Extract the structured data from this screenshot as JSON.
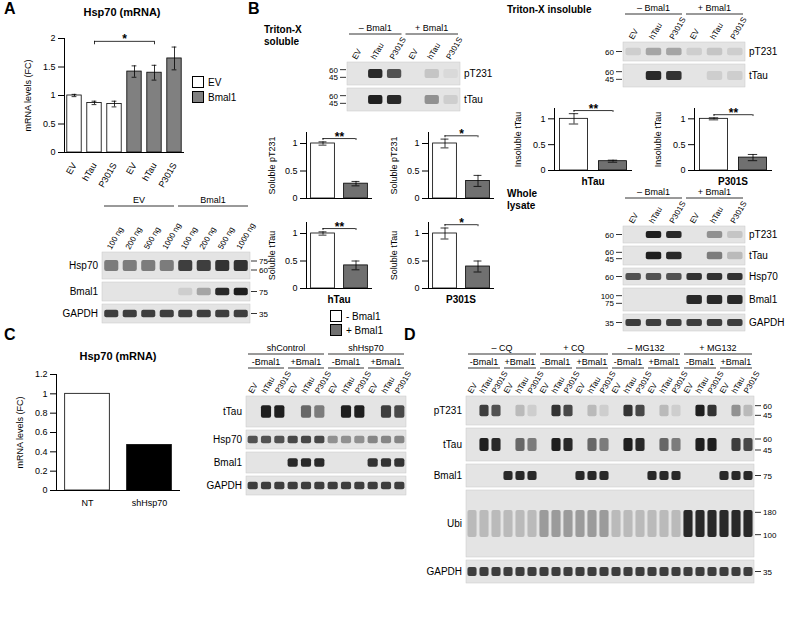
{
  "panel_labels": [
    "A",
    "B",
    "C",
    "D"
  ],
  "chart_data": [
    {
      "type": "bar",
      "title": "Hsp70 (mRNA)",
      "ylabel": "mRNA levels (FC)",
      "categories": [
        "EV",
        "hTau",
        "P301S",
        "EV",
        "hTau",
        "P301S"
      ],
      "series": [
        {
          "name": "EV",
          "color": "#ffffff",
          "values": [
            1.0,
            0.87,
            0.85,
            null,
            null,
            null
          ],
          "errors": [
            0.02,
            0.03,
            0.05,
            null,
            null,
            null
          ]
        },
        {
          "name": "Bmal1",
          "color": "#808080",
          "values": [
            null,
            null,
            null,
            1.42,
            1.4,
            1.65
          ],
          "errors": [
            null,
            null,
            null,
            0.1,
            0.13,
            0.2
          ]
        }
      ],
      "ylim": [
        0,
        2
      ],
      "yticks": [
        0,
        0.5,
        1,
        1.5,
        2
      ],
      "legend": "right",
      "annotations": [
        {
          "text": "*",
          "between": [
            1,
            4
          ]
        }
      ]
    },
    {
      "type": "bar",
      "ylabel": "Soluble pT231",
      "values": [
        1.0,
        0.27
      ],
      "errors": [
        0.03,
        0.04
      ],
      "colors": [
        "#ffffff",
        "#707070"
      ],
      "ylim": [
        0,
        1.2
      ],
      "yticks": [
        0,
        0.5,
        1
      ],
      "tick_labels": "y",
      "annotations": [
        {
          "text": "**",
          "between": [
            0,
            1
          ]
        }
      ]
    },
    {
      "type": "bar",
      "ylabel": "Soluble pT231",
      "values": [
        1.0,
        0.32
      ],
      "errors": [
        0.08,
        0.1
      ],
      "colors": [
        "#ffffff",
        "#707070"
      ],
      "ylim": [
        0,
        1.2
      ],
      "yticks": [
        0,
        0.5,
        1
      ],
      "tick_labels": "y",
      "annotations": [
        {
          "text": "*",
          "between": [
            0,
            1
          ]
        }
      ]
    },
    {
      "type": "bar",
      "ylabel": "Soluble tTau",
      "xlabel": "hTau",
      "values": [
        1.0,
        0.42
      ],
      "errors": [
        0.03,
        0.08
      ],
      "colors": [
        "#ffffff",
        "#707070"
      ],
      "ylim": [
        0,
        1.2
      ],
      "yticks": [
        0,
        0.5,
        1
      ],
      "tick_labels": "y",
      "annotations": [
        {
          "text": "**",
          "between": [
            0,
            1
          ]
        }
      ]
    },
    {
      "type": "bar",
      "ylabel": "Soluble tTau",
      "xlabel": "P301S",
      "values": [
        1.0,
        0.4
      ],
      "errors": [
        0.1,
        0.1
      ],
      "colors": [
        "#ffffff",
        "#707070"
      ],
      "ylim": [
        0,
        1.2
      ],
      "yticks": [
        0,
        0.5,
        1
      ],
      "tick_labels": "y",
      "annotations": [
        {
          "text": "*",
          "between": [
            0,
            1
          ]
        }
      ]
    },
    {
      "type": "bar",
      "ylabel": "Insoluble tTau",
      "xlabel": "hTau",
      "values": [
        1.0,
        0.18
      ],
      "errors": [
        0.1,
        0.02
      ],
      "colors": [
        "#ffffff",
        "#707070"
      ],
      "ylim": [
        0,
        1.2
      ],
      "yticks": [
        0,
        0.5,
        1
      ],
      "tick_labels": "y",
      "annotations": [
        {
          "text": "**",
          "between": [
            0,
            1
          ]
        }
      ]
    },
    {
      "type": "bar",
      "ylabel": "Insoluble tTau",
      "xlabel": "P301S",
      "values": [
        1.0,
        0.25
      ],
      "errors": [
        0.02,
        0.06
      ],
      "colors": [
        "#ffffff",
        "#707070"
      ],
      "ylim": [
        0,
        1.2
      ],
      "yticks": [
        0,
        0.5,
        1
      ],
      "tick_labels": "y",
      "annotations": [
        {
          "text": "**",
          "between": [
            0,
            1
          ]
        }
      ]
    },
    {
      "type": "bar",
      "title": "Hsp70 (mRNA)",
      "ylabel": "mRNA levels (FC)",
      "categories": [
        "NT",
        "shHsp70"
      ],
      "values": [
        1.0,
        0.47
      ],
      "colors": [
        "#ffffff",
        "#000000"
      ],
      "ylim": [
        0,
        1.2
      ],
      "yticks": [
        0,
        0.2,
        0.4,
        0.6,
        0.8,
        1,
        1.2
      ]
    }
  ],
  "legends": [
    {
      "entries": [
        {
          "name": "- Bmal1",
          "color": "#ffffff"
        },
        {
          "name": "+ Bmal1",
          "color": "#707070"
        }
      ]
    }
  ],
  "blots": [
    {
      "header_rows": [
        [
          {
            "text": "EV",
            "span": 4
          },
          {
            "text": "Bmal1",
            "span": 4
          }
        ]
      ],
      "lanes": [
        "100 ng",
        "200 ng",
        "500 ng",
        "1000 ng",
        "100 ng",
        "200 ng",
        "500 ng",
        "1000 ng"
      ],
      "rows": [
        {
          "name": "Hsp70",
          "markers": [
            75,
            60
          ],
          "intensity": [
            0.5,
            0.5,
            0.5,
            0.5,
            0.8,
            0.8,
            0.85,
            0.85
          ]
        },
        {
          "name": "Bmal1",
          "markers": [
            75
          ],
          "intensity": [
            0,
            0,
            0,
            0,
            0.1,
            0.3,
            0.9,
            0.95
          ]
        },
        {
          "name": "GAPDH",
          "markers": [
            35
          ],
          "intensity": [
            0.8,
            0.8,
            0.8,
            0.8,
            0.8,
            0.8,
            0.8,
            0.8
          ]
        }
      ]
    },
    {
      "title": "Triton-X soluble",
      "header_rows": [
        [
          {
            "text": "– Bmal1",
            "span": 3
          },
          {
            "text": "+ Bmal1",
            "span": 3
          }
        ]
      ],
      "lanes": [
        "EV",
        "hTau",
        "P301S",
        "EV",
        "hTau",
        "P301S"
      ],
      "rows": [
        {
          "name": "pT231",
          "markers": [
            60,
            45
          ],
          "intensity": [
            0,
            0.9,
            0.7,
            0,
            0.15,
            0.05
          ]
        },
        {
          "name": "tTau",
          "markers": [
            60,
            45
          ],
          "intensity": [
            0,
            0.95,
            0.9,
            0,
            0.4,
            0.1
          ]
        }
      ]
    },
    {
      "title": "Triton-X insoluble",
      "header_rows": [
        [
          {
            "text": "– Bmal1",
            "span": 3
          },
          {
            "text": "+ Bmal1",
            "span": 3
          }
        ]
      ],
      "lanes": [
        "EV",
        "hTau",
        "P301S",
        "EV",
        "hTau",
        "P301S"
      ],
      "rows": [
        {
          "name": "pT231",
          "markers": [
            60
          ],
          "intensity": [
            0.1,
            0.3,
            0.3,
            0.1,
            0.15,
            0.1
          ]
        },
        {
          "name": "tTau",
          "markers": [
            60,
            45
          ],
          "intensity": [
            0,
            0.9,
            0.85,
            0,
            0.1,
            0.1
          ]
        }
      ]
    },
    {
      "title": "Whole lysate",
      "header_rows": [
        [
          {
            "text": "– Bmal1",
            "span": 3
          },
          {
            "text": "+ Bmal1",
            "span": 3
          }
        ]
      ],
      "lanes": [
        "EV",
        "hTau",
        "P301S",
        "EV",
        "hTau",
        "P301S"
      ],
      "rows": [
        {
          "name": "pT231",
          "markers": [
            60
          ],
          "intensity": [
            0,
            0.95,
            0.9,
            0,
            0.4,
            0.15
          ]
        },
        {
          "name": "tTau",
          "markers": [
            60,
            45
          ],
          "intensity": [
            0,
            0.95,
            0.9,
            0,
            0.5,
            0.2
          ]
        },
        {
          "name": "Hsp70",
          "markers": [
            60
          ],
          "intensity": [
            0.7,
            0.7,
            0.7,
            0.85,
            0.85,
            0.85
          ]
        },
        {
          "name": "Bmal1",
          "markers": [
            100,
            75
          ],
          "intensity": [
            0,
            0,
            0,
            0.9,
            0.9,
            0.9
          ]
        },
        {
          "name": "GAPDH",
          "markers": [
            35
          ],
          "intensity": [
            0.8,
            0.8,
            0.8,
            0.8,
            0.8,
            0.8
          ]
        }
      ]
    },
    {
      "header_rows": [
        [
          {
            "text": "shControl",
            "span": 6
          },
          {
            "text": "shHsp70",
            "span": 6
          }
        ],
        [
          {
            "text": "-Bmal1",
            "span": 3
          },
          {
            "text": "+Bmal1",
            "span": 3
          },
          {
            "text": "-Bmal1",
            "span": 3
          },
          {
            "text": "+Bmal1",
            "span": 3
          }
        ]
      ],
      "lanes": [
        "EV",
        "hTau",
        "P301S",
        "EV",
        "hTau",
        "P301S",
        "EV",
        "hTau",
        "P301S",
        "EV",
        "hTau",
        "P301S"
      ],
      "rows": [
        {
          "name": "tTau",
          "intensity": [
            0,
            0.95,
            0.95,
            0,
            0.6,
            0.5,
            0,
            0.95,
            0.95,
            0,
            0.8,
            0.75
          ]
        },
        {
          "name": "Hsp70",
          "intensity": [
            0.7,
            0.7,
            0.7,
            0.75,
            0.75,
            0.75,
            0.4,
            0.4,
            0.4,
            0.45,
            0.45,
            0.45
          ]
        },
        {
          "name": "Bmal1",
          "intensity": [
            0,
            0,
            0,
            0.9,
            0.9,
            0.9,
            0,
            0,
            0,
            0.85,
            0.85,
            0.85
          ]
        },
        {
          "name": "GAPDH",
          "intensity": [
            0.8,
            0.8,
            0.8,
            0.8,
            0.8,
            0.8,
            0.8,
            0.8,
            0.8,
            0.8,
            0.8,
            0.8
          ]
        }
      ]
    },
    {
      "header_rows": [
        [
          {
            "text": "– CQ",
            "span": 6
          },
          {
            "text": "+ CQ",
            "span": 6
          },
          {
            "text": "– MG132",
            "span": 6
          },
          {
            "text": "+ MG132",
            "span": 6
          }
        ],
        [
          {
            "text": "-Bmal1",
            "span": 3
          },
          {
            "text": "+Bmal1",
            "span": 3
          },
          {
            "text": "-Bmal1",
            "span": 3
          },
          {
            "text": "+Bmal1",
            "span": 3
          },
          {
            "text": "-Bmal1",
            "span": 3
          },
          {
            "text": "+Bmal1",
            "span": 3
          },
          {
            "text": "-Bmal1",
            "span": 3
          },
          {
            "text": "+Bmal1",
            "span": 3
          }
        ]
      ],
      "lanes": [
        "EV",
        "hTau",
        "P301S",
        "EV",
        "hTau",
        "P301S",
        "EV",
        "hTau",
        "P301S",
        "EV",
        "hTau",
        "P301S",
        "EV",
        "hTau",
        "P301S",
        "EV",
        "hTau",
        "P301S",
        "EV",
        "hTau",
        "P301S",
        "EV",
        "hTau",
        "P301S"
      ],
      "rows": [
        {
          "name": "pT231",
          "markers": [
            60,
            45
          ],
          "intensity": [
            0,
            0.8,
            0.7,
            0,
            0.2,
            0.1,
            0,
            0.85,
            0.75,
            0,
            0.2,
            0.1,
            0,
            0.85,
            0.75,
            0,
            0.2,
            0.1,
            0,
            0.95,
            0.85,
            0,
            0.4,
            0.2
          ]
        },
        {
          "name": "tTau",
          "markers": [
            60,
            45
          ],
          "intensity": [
            0,
            0.95,
            0.9,
            0,
            0.6,
            0.5,
            0,
            0.95,
            0.9,
            0,
            0.6,
            0.5,
            0,
            0.95,
            0.9,
            0,
            0.6,
            0.5,
            0,
            0.95,
            0.95,
            0,
            0.8,
            0.75
          ]
        },
        {
          "name": "Bmal1",
          "markers": [
            75
          ],
          "intensity": [
            0,
            0,
            0,
            0.9,
            0.9,
            0.9,
            0,
            0,
            0,
            0.9,
            0.9,
            0.9,
            0,
            0,
            0,
            0.9,
            0.9,
            0.9,
            0,
            0,
            0,
            0.9,
            0.9,
            0.9
          ]
        },
        {
          "name": "Ubi",
          "markers": [
            180,
            100
          ],
          "intensity": [
            0.2,
            0.2,
            0.2,
            0.2,
            0.2,
            0.2,
            0.35,
            0.35,
            0.35,
            0.35,
            0.35,
            0.35,
            0.2,
            0.2,
            0.2,
            0.2,
            0.2,
            0.2,
            0.9,
            0.9,
            0.9,
            0.9,
            0.9,
            0.9
          ]
        },
        {
          "name": "GAPDH",
          "markers": [
            35
          ],
          "intensity": [
            0.8,
            0.8,
            0.8,
            0.8,
            0.8,
            0.8,
            0.8,
            0.8,
            0.8,
            0.8,
            0.8,
            0.8,
            0.8,
            0.8,
            0.8,
            0.8,
            0.8,
            0.8,
            0.8,
            0.8,
            0.8,
            0.8,
            0.8,
            0.8
          ]
        }
      ]
    }
  ]
}
